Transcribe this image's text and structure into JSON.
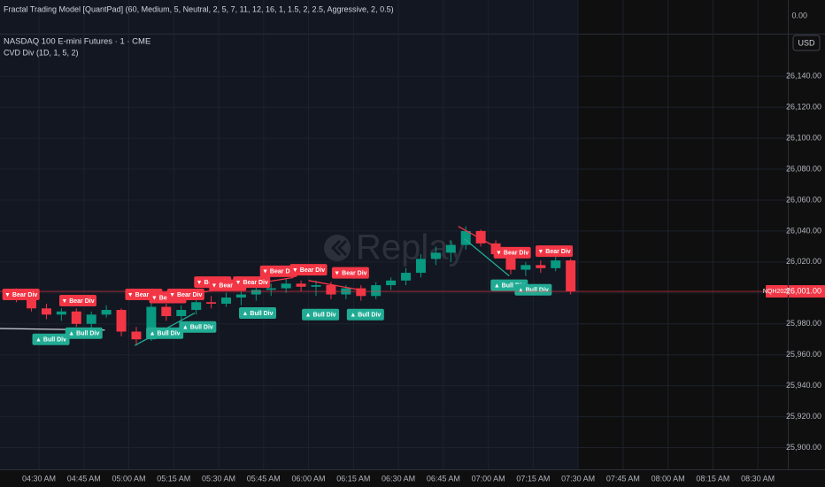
{
  "chart_data": {
    "type": "candlestick",
    "title": "NASDAQ 100 E-mini Futures · 1 · CME",
    "indicators": [
      "Fractal Trading Model [QuantPad] (60, Medium, 5, Neutral, 2, 5, 7, 11, 12, 16, 1, 1.5, 2, 2.5, Aggressive, 2, 0.5)",
      "CVD Div (1D, 1, 5, 2)"
    ],
    "indicator_yticks": [
      {
        "value": 0,
        "label": "0.00"
      }
    ],
    "currency": "USD",
    "watermark": "Replay",
    "symbol": "NQH2026",
    "last_price": {
      "value": 26001,
      "label": "26,001.00"
    },
    "up_color": "#089981",
    "down_color": "#f23645",
    "grid": true,
    "x": [
      "04:20 AM",
      "04:25 AM",
      "04:30 AM",
      "04:35 AM",
      "04:40 AM",
      "04:45 AM",
      "04:50 AM",
      "04:55 AM",
      "05:00 AM",
      "05:05 AM",
      "05:10 AM",
      "05:15 AM",
      "05:20 AM",
      "05:25 AM",
      "05:30 AM",
      "05:35 AM",
      "05:40 AM",
      "05:45 AM",
      "05:50 AM",
      "05:55 AM",
      "06:00 AM",
      "06:05 AM",
      "06:10 AM",
      "06:15 AM",
      "06:20 AM",
      "06:25 AM",
      "06:30 AM",
      "06:35 AM",
      "06:40 AM",
      "06:45 AM",
      "06:50 AM",
      "06:55 AM",
      "07:00 AM",
      "07:05 AM",
      "07:10 AM",
      "07:15 AM",
      "07:20 AM",
      "07:25 AM"
    ],
    "open": [
      26000,
      25996,
      25990,
      25986,
      25988,
      25980,
      25986,
      25989,
      25975,
      25970,
      25991,
      25985,
      25989,
      25994,
      25993,
      25997,
      25999,
      26002,
      26003,
      26006,
      26004,
      26005,
      25999,
      26003,
      25998,
      26005,
      26008,
      26013,
      26022,
      26026,
      26031,
      26040,
      26032,
      26025,
      26015,
      26018,
      26016,
      26021
    ],
    "high": [
      26003,
      25998,
      25993,
      25990,
      25990,
      25988,
      25992,
      25990,
      25978,
      25994,
      25993,
      25992,
      25997,
      25998,
      26000,
      26001,
      26004,
      26006,
      26009,
      26008,
      26008,
      26007,
      26005,
      26005,
      26007,
      26010,
      26016,
      26025,
      26030,
      26034,
      26043,
      26041,
      26034,
      26027,
      26020,
      26021,
      26024,
      26022
    ],
    "low": [
      25994,
      25988,
      25983,
      25982,
      25978,
      25977,
      25984,
      25972,
      25966,
      25969,
      25982,
      25980,
      25986,
      25990,
      25991,
      25992,
      25995,
      25998,
      26000,
      26001,
      25998,
      25996,
      25996,
      25995,
      25996,
      26002,
      26005,
      26010,
      26018,
      26020,
      26028,
      26030,
      26022,
      26012,
      26011,
      26013,
      26014,
      25999
    ],
    "close": [
      25996,
      25990,
      25986,
      25988,
      25980,
      25986,
      25989,
      25975,
      25970,
      25991,
      25985,
      25989,
      25994,
      25993,
      25997,
      25999,
      26002,
      26003,
      26006,
      26004,
      26005,
      25999,
      26003,
      25998,
      26005,
      26008,
      26013,
      26022,
      26026,
      26031,
      26040,
      26032,
      26025,
      26015,
      26018,
      26016,
      26021,
      26001
    ],
    "xlim": [
      "04:17 AM",
      "08:40 AM"
    ],
    "xticks": [
      "04:30 AM",
      "04:45 AM",
      "05:00 AM",
      "05:15 AM",
      "05:30 AM",
      "05:45 AM",
      "06:00 AM",
      "06:15 AM",
      "06:30 AM",
      "06:45 AM",
      "07:00 AM",
      "07:15 AM",
      "07:30 AM",
      "07:45 AM",
      "08:00 AM",
      "08:15 AM",
      "08:30 AM"
    ],
    "ylim": [
      25886,
      26167
    ],
    "yticks": [
      {
        "value": 25900,
        "label": "25,900.00"
      },
      {
        "value": 25920,
        "label": "25,920.00"
      },
      {
        "value": 25940,
        "label": "25,940.00"
      },
      {
        "value": 25960,
        "label": "25,960.00"
      },
      {
        "value": 25980,
        "label": "25,980.00"
      },
      {
        "value": 26000,
        "label": "26,000.00"
      },
      {
        "value": 26020,
        "label": "26,020.00"
      },
      {
        "value": 26040,
        "label": "26,040.00"
      },
      {
        "value": 26060,
        "label": "26,060.00"
      },
      {
        "value": 26080,
        "label": "26,080.00"
      },
      {
        "value": 26100,
        "label": "26,100.00"
      },
      {
        "value": 26120,
        "label": "26,120.00"
      },
      {
        "value": 26140,
        "label": "26,140.00"
      }
    ],
    "lines": [
      {
        "x": [
          "04:17 AM",
          "04:52 AM"
        ],
        "y": [
          25977,
          25976
        ],
        "color": "#d1d4dc"
      },
      {
        "x": [
          "05:02 AM",
          "05:22 AM"
        ],
        "y": [
          25966,
          25987
        ],
        "color": "#22ab94"
      },
      {
        "x": [
          "05:20 AM",
          "05:55 AM"
        ],
        "y": [
          25999,
          26010
        ],
        "color": "#f23645"
      },
      {
        "x": [
          "06:00 AM",
          "06:17 AM"
        ],
        "y": [
          26008,
          26002
        ],
        "color": "#f23645"
      },
      {
        "x": [
          "06:50 AM",
          "07:05 AM"
        ],
        "y": [
          26043,
          26027
        ],
        "color": "#f23645"
      },
      {
        "x": [
          "06:52 AM",
          "07:07 AM"
        ],
        "y": [
          26035,
          26011
        ],
        "color": "#22ab94"
      }
    ],
    "annotations": [
      {
        "text": "▼ Bear Div",
        "x": "04:24 AM",
        "y": 25999,
        "color": "#f23645"
      },
      {
        "text": "▼ Bear Div",
        "x": "04:43 AM",
        "y": 25995,
        "color": "#f23645"
      },
      {
        "text": "▼ Bear Div",
        "x": "05:05 AM",
        "y": 25999,
        "color": "#f23645"
      },
      {
        "text": "▼ Bear Div",
        "x": "05:13 AM",
        "y": 25997,
        "color": "#f23645"
      },
      {
        "text": "▼ Bear Div",
        "x": "05:19 AM",
        "y": 25999,
        "color": "#f23645"
      },
      {
        "text": "▼ Bear Div",
        "x": "05:28 AM",
        "y": 26007,
        "color": "#f23645"
      },
      {
        "text": "▼ Bear Div",
        "x": "05:33 AM",
        "y": 26005,
        "color": "#f23645"
      },
      {
        "text": "▼ Bear Div",
        "x": "05:41 AM",
        "y": 26007,
        "color": "#f23645"
      },
      {
        "text": "▼ Bear Div",
        "x": "05:50 AM",
        "y": 26014,
        "color": "#f23645"
      },
      {
        "text": "▼ Bear Div",
        "x": "06:00 AM",
        "y": 26015,
        "color": "#f23645"
      },
      {
        "text": "▼ Bear Div",
        "x": "06:14 AM",
        "y": 26013,
        "color": "#f23645"
      },
      {
        "text": "▼ Bear Div",
        "x": "07:08 AM",
        "y": 26026,
        "color": "#f23645"
      },
      {
        "text": "▼ Bear Div",
        "x": "07:22 AM",
        "y": 26027,
        "color": "#f23645"
      },
      {
        "text": "▲ Bull Div",
        "x": "04:34 AM",
        "y": 25970,
        "color": "#22ab94"
      },
      {
        "text": "▲ Bull Div",
        "x": "04:45 AM",
        "y": 25974,
        "color": "#22ab94"
      },
      {
        "text": "▲ Bull Div",
        "x": "05:12 AM",
        "y": 25974,
        "color": "#22ab94"
      },
      {
        "text": "▲ Bull Div",
        "x": "05:23 AM",
        "y": 25978,
        "color": "#22ab94"
      },
      {
        "text": "▲ Bull Div",
        "x": "05:43 AM",
        "y": 25987,
        "color": "#22ab94"
      },
      {
        "text": "▲ Bull Div",
        "x": "06:04 AM",
        "y": 25986,
        "color": "#22ab94"
      },
      {
        "text": "▲ Bull Div",
        "x": "06:19 AM",
        "y": 25986,
        "color": "#22ab94"
      },
      {
        "text": "▲ Bull Div",
        "x": "07:07 AM",
        "y": 26005,
        "color": "#22ab94"
      },
      {
        "text": "▲ Bull Div",
        "x": "07:15 AM",
        "y": 26002,
        "color": "#22ab94"
      }
    ]
  }
}
